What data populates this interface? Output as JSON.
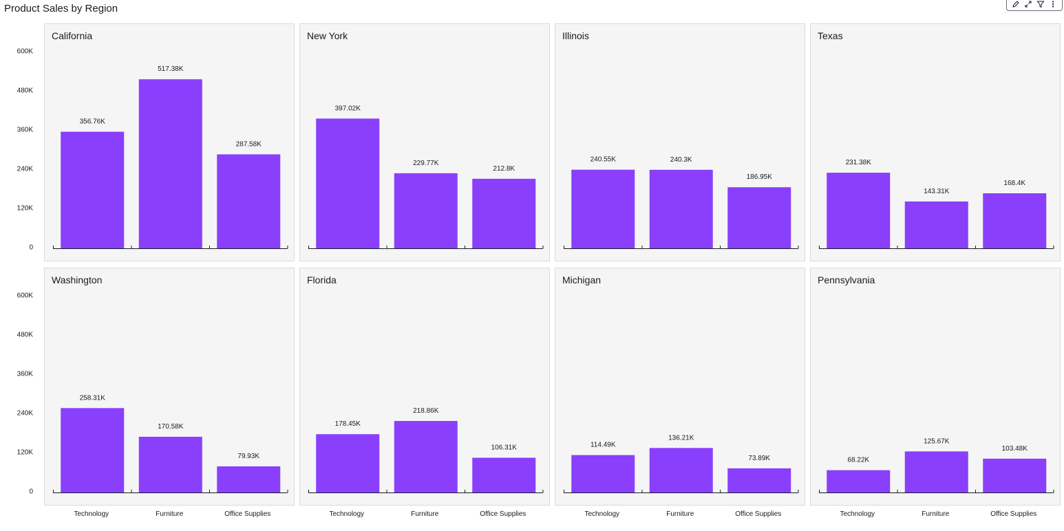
{
  "page_title": "Product Sales by Region",
  "toolbar": {
    "icons": [
      "pencil-icon",
      "expand-icon",
      "filter-icon",
      "more-vertical-icon"
    ]
  },
  "colors": {
    "bar": "#8a3ffc",
    "panel_bg": "#f5f5f5"
  },
  "chart_data": {
    "type": "bar",
    "title": "Product Sales by Region",
    "categories": [
      "Technology",
      "Furniture",
      "Office Supplies"
    ],
    "ylim": [
      0,
      600000
    ],
    "yticks": [
      0,
      120000,
      240000,
      360000,
      480000,
      600000
    ],
    "ytick_labels": [
      "0",
      "120K",
      "240K",
      "360K",
      "480K",
      "600K"
    ],
    "legend": "none",
    "grid": false,
    "panels": [
      {
        "region": "California",
        "values": [
          356760,
          517380,
          287580
        ],
        "labels": [
          "356.76K",
          "517.38K",
          "287.58K"
        ]
      },
      {
        "region": "New York",
        "values": [
          397020,
          229770,
          212800
        ],
        "labels": [
          "397.02K",
          "229.77K",
          "212.8K"
        ]
      },
      {
        "region": "Illinois",
        "values": [
          240550,
          240300,
          186950
        ],
        "labels": [
          "240.55K",
          "240.3K",
          "186.95K"
        ]
      },
      {
        "region": "Texas",
        "values": [
          231380,
          143310,
          168400
        ],
        "labels": [
          "231.38K",
          "143.31K",
          "168.4K"
        ]
      },
      {
        "region": "Washington",
        "values": [
          258310,
          170580,
          79930
        ],
        "labels": [
          "258.31K",
          "170.58K",
          "79.93K"
        ]
      },
      {
        "region": "Florida",
        "values": [
          178450,
          218860,
          106310
        ],
        "labels": [
          "178.45K",
          "218.86K",
          "106.31K"
        ]
      },
      {
        "region": "Michigan",
        "values": [
          114490,
          136210,
          73890
        ],
        "labels": [
          "114.49K",
          "136.21K",
          "73.89K"
        ]
      },
      {
        "region": "Pennsylvania",
        "values": [
          68220,
          125670,
          103480
        ],
        "labels": [
          "68.22K",
          "125.67K",
          "103.48K"
        ]
      }
    ]
  }
}
